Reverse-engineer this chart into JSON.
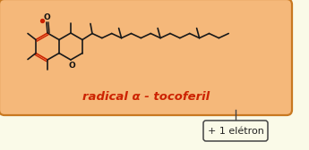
{
  "bg_color": "#fafae8",
  "box_color": "#f5b87a",
  "box_edge_color": "#c87820",
  "label_text": "radical α - tocoferil",
  "label_color": "#cc2200",
  "label_fontsize": 9.5,
  "electron_text": "+ 1 elétron",
  "electron_fontsize": 8.0,
  "bond_color": "#1a1a1a",
  "red_bond_color": "#cc2200",
  "radical_color": "#cc2200"
}
